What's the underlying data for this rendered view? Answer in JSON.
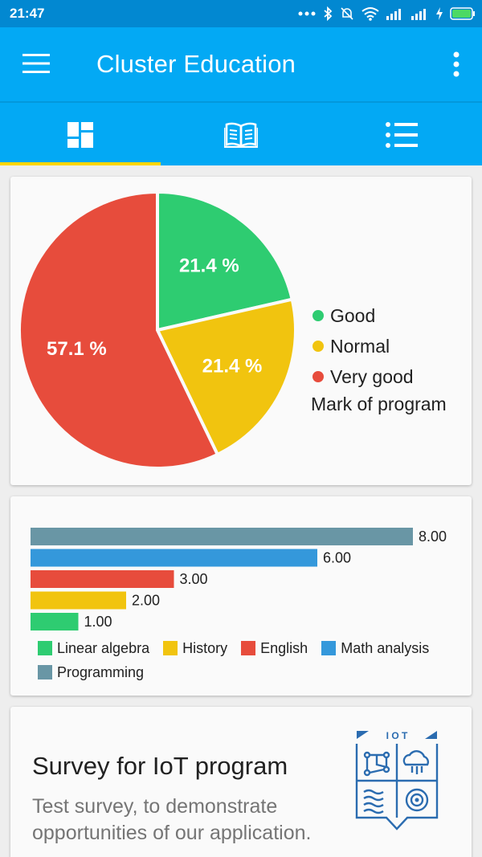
{
  "status_bar": {
    "time": "21:47"
  },
  "app_bar": {
    "title": "Cluster Education"
  },
  "tabs": [
    {
      "icon": "dashboard-icon",
      "selected": true
    },
    {
      "icon": "book-icon",
      "selected": false
    },
    {
      "icon": "list-icon",
      "selected": false
    }
  ],
  "colors": {
    "primary": "#03a9f4",
    "primary_dark": "#0288d1",
    "accent": "#ffd600"
  },
  "chart_data": [
    {
      "type": "pie",
      "title": "Mark of program",
      "slices": [
        {
          "name": "Good",
          "value": 21.4,
          "label": "21.4 %",
          "color": "#2ecc71"
        },
        {
          "name": "Normal",
          "value": 21.4,
          "label": "21.4 %",
          "color": "#f1c40f"
        },
        {
          "name": "Very good",
          "value": 57.1,
          "label": "57.1 %",
          "color": "#e74c3c"
        }
      ],
      "legend_placement": "right"
    },
    {
      "type": "bar",
      "orientation": "horizontal",
      "categories": [
        "Programming",
        "Math analysis",
        "English",
        "History",
        "Linear algebra"
      ],
      "values": [
        8.0,
        6.0,
        3.0,
        2.0,
        1.0
      ],
      "value_labels": [
        "8.00",
        "6.00",
        "3.00",
        "2.00",
        "1.00"
      ],
      "colors": [
        "#6996a5",
        "#3498db",
        "#e74c3c",
        "#f1c40f",
        "#2ecc71"
      ],
      "legend": [
        "Linear algebra",
        "History",
        "English",
        "Math analysis",
        "Programming"
      ],
      "legend_colors": [
        "#2ecc71",
        "#f1c40f",
        "#e74c3c",
        "#3498db",
        "#6996a5"
      ],
      "xlim": [
        0,
        8
      ],
      "legend_placement": "bottom",
      "grid": false
    }
  ],
  "survey": {
    "title": "Survey for IoT program",
    "description": "Test survey, to demonstrate opportunities of our application.",
    "logo_text": "I O T"
  }
}
